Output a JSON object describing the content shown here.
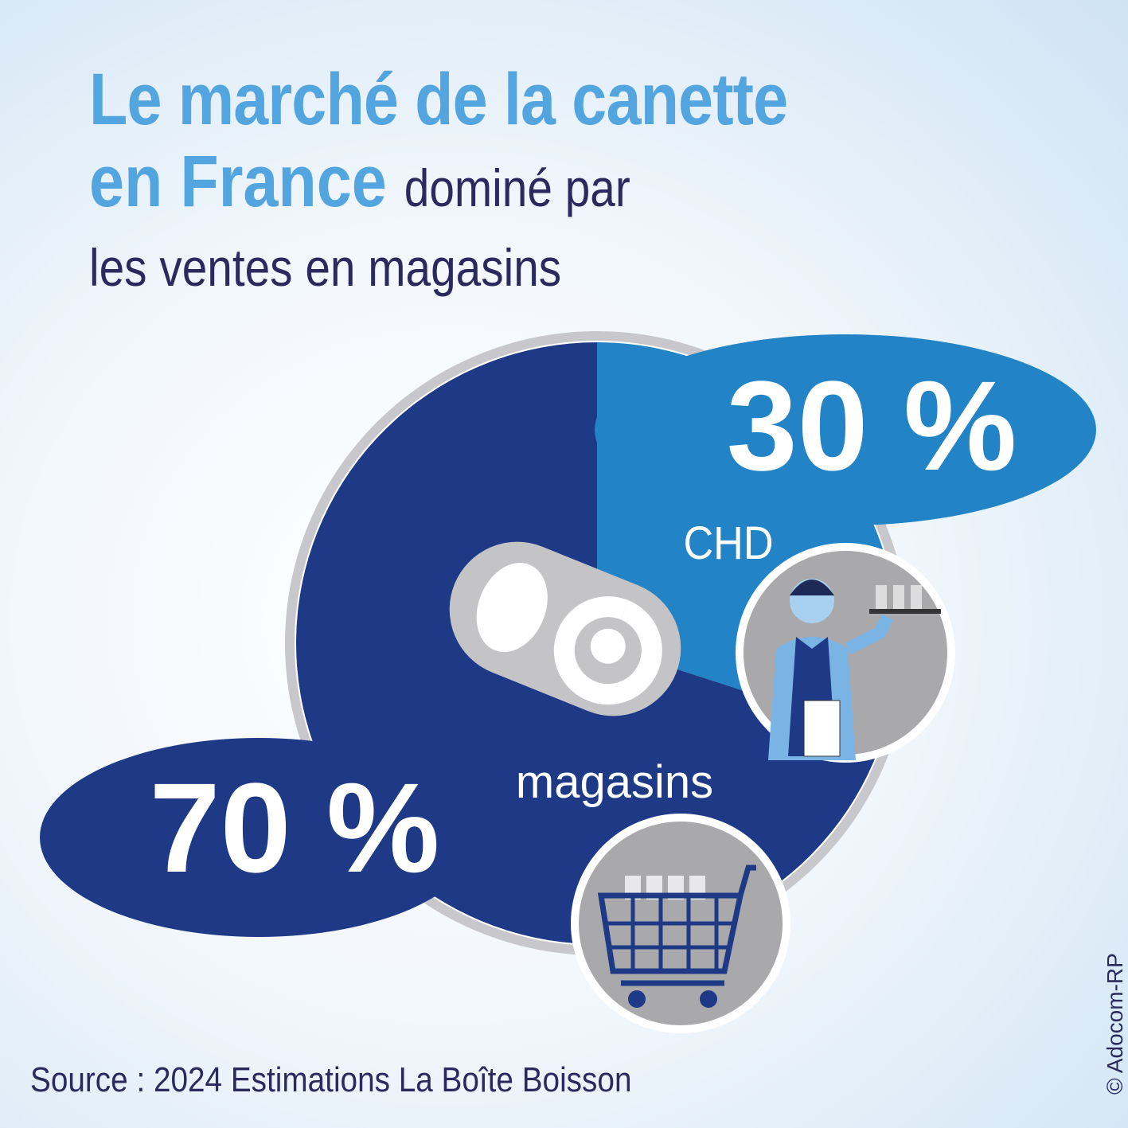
{
  "title": {
    "line1": "Le marché de la canette",
    "line2": "en France",
    "line2_sub": "dominé par",
    "line3": "les ventes en magasins"
  },
  "source": "Source : 2024 Estimations La Boîte Boisson",
  "copyright": "© Adocom-RP",
  "colors": {
    "chd": "#2283c6",
    "magasins": "#1e3a87",
    "ring": "#c8c8cc",
    "title": "#53a5df",
    "text": "#2a2a5e"
  },
  "chart_data": {
    "type": "pie",
    "title": "Le marché de la canette en France",
    "categories": [
      "CHD",
      "magasins"
    ],
    "values": [
      30,
      70
    ],
    "labels": [
      "30 %",
      "70 %"
    ],
    "unit": "%"
  }
}
